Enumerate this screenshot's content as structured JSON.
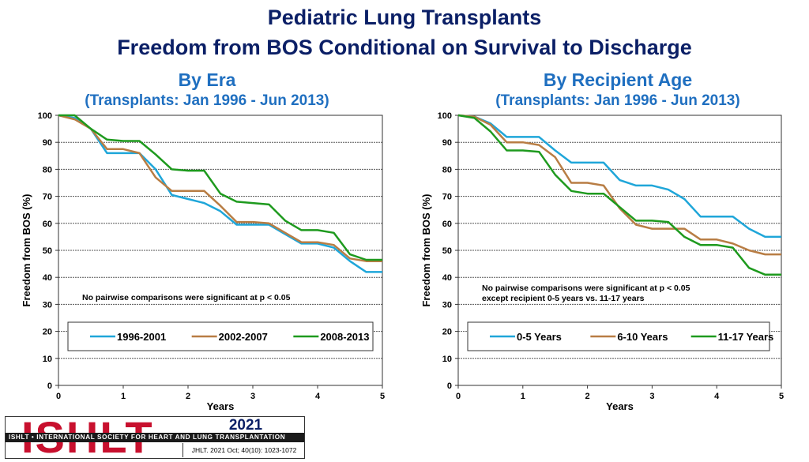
{
  "title_line1": "Pediatric Lung Transplants",
  "title_line2": "Freedom from BOS Conditional on Survival to Discharge",
  "logo": {
    "wordmark": "ISHLT",
    "band_text": "ISHLT • INTERNATIONAL SOCIETY FOR HEART AND LUNG TRANSPLANTATION",
    "year": "2021",
    "citation": "JHLT. 2021 Oct; 40(10): 1023-1072"
  },
  "chart_data": [
    {
      "type": "line",
      "title": "By Era",
      "subtitle": "(Transplants: Jan 1996 - Jun 2013)",
      "xlabel": "Years",
      "ylabel": "Freedom from BOS (%)",
      "xlim": [
        0,
        5
      ],
      "ylim": [
        0,
        100
      ],
      "xticks": [
        0,
        1,
        2,
        3,
        4,
        5
      ],
      "yticks": [
        0,
        10,
        20,
        30,
        40,
        50,
        60,
        70,
        80,
        90,
        100
      ],
      "annotation": [
        "No pairwise comparisons were significant at p < 0.05"
      ],
      "legend": "bottom",
      "series": [
        {
          "name": "1996-2001",
          "color": "#1fa6d9",
          "points": [
            [
              0,
              100
            ],
            [
              0.25,
              99
            ],
            [
              0.5,
              95
            ],
            [
              0.75,
              86
            ],
            [
              1,
              86
            ],
            [
              1.25,
              86
            ],
            [
              1.5,
              80
            ],
            [
              1.75,
              70.5
            ],
            [
              2,
              69
            ],
            [
              2.25,
              67.5
            ],
            [
              2.5,
              64.5
            ],
            [
              2.75,
              59.5
            ],
            [
              3,
              59.5
            ],
            [
              3.25,
              59.5
            ],
            [
              3.5,
              56
            ],
            [
              3.75,
              52.5
            ],
            [
              4,
              52.5
            ],
            [
              4.25,
              51
            ],
            [
              4.5,
              46
            ],
            [
              4.75,
              42
            ],
            [
              5,
              42
            ]
          ]
        },
        {
          "name": "2002-2007",
          "color": "#b87d44",
          "points": [
            [
              0,
              100
            ],
            [
              0.25,
              98.5
            ],
            [
              0.5,
              95
            ],
            [
              0.75,
              87.5
            ],
            [
              1,
              87.5
            ],
            [
              1.25,
              86
            ],
            [
              1.5,
              77
            ],
            [
              1.75,
              72
            ],
            [
              2,
              72
            ],
            [
              2.25,
              72
            ],
            [
              2.5,
              66.5
            ],
            [
              2.75,
              60.5
            ],
            [
              3,
              60.5
            ],
            [
              3.25,
              60
            ],
            [
              3.5,
              56.5
            ],
            [
              3.75,
              53
            ],
            [
              4,
              53
            ],
            [
              4.25,
              52
            ],
            [
              4.5,
              47
            ],
            [
              4.75,
              46
            ],
            [
              5,
              46
            ]
          ]
        },
        {
          "name": "2008-2013",
          "color": "#1e9a1e",
          "points": [
            [
              0,
              100
            ],
            [
              0.25,
              100
            ],
            [
              0.5,
              95
            ],
            [
              0.75,
              91
            ],
            [
              1,
              90.5
            ],
            [
              1.25,
              90.5
            ],
            [
              1.5,
              85.5
            ],
            [
              1.75,
              80
            ],
            [
              2,
              79.5
            ],
            [
              2.25,
              79.5
            ],
            [
              2.5,
              71
            ],
            [
              2.75,
              68
            ],
            [
              3,
              67.5
            ],
            [
              3.25,
              67
            ],
            [
              3.5,
              61
            ],
            [
              3.75,
              57.5
            ],
            [
              4,
              57.5
            ],
            [
              4.25,
              56.5
            ],
            [
              4.5,
              48.5
            ],
            [
              4.75,
              46.5
            ],
            [
              5,
              46.5
            ]
          ]
        }
      ]
    },
    {
      "type": "line",
      "title": "By Recipient Age",
      "subtitle": "(Transplants: Jan 1996 - Jun 2013)",
      "xlabel": "Years",
      "ylabel": "Freedom from BOS (%)",
      "xlim": [
        0,
        5
      ],
      "ylim": [
        0,
        100
      ],
      "xticks": [
        0,
        1,
        2,
        3,
        4,
        5
      ],
      "yticks": [
        0,
        10,
        20,
        30,
        40,
        50,
        60,
        70,
        80,
        90,
        100
      ],
      "annotation": [
        "No pairwise comparisons were significant at p < 0.05",
        "except recipient 0-5 years vs. 11-17 years"
      ],
      "legend": "bottom",
      "series": [
        {
          "name": "0-5 Years",
          "color": "#1fa6d9",
          "points": [
            [
              0,
              100
            ],
            [
              0.25,
              99.5
            ],
            [
              0.5,
              97
            ],
            [
              0.75,
              92
            ],
            [
              1,
              92
            ],
            [
              1.25,
              92
            ],
            [
              1.5,
              87
            ],
            [
              1.75,
              82.5
            ],
            [
              2,
              82.5
            ],
            [
              2.25,
              82.5
            ],
            [
              2.5,
              76
            ],
            [
              2.75,
              74
            ],
            [
              3,
              74
            ],
            [
              3.25,
              72.5
            ],
            [
              3.5,
              69
            ],
            [
              3.75,
              62.5
            ],
            [
              4,
              62.5
            ],
            [
              4.25,
              62.5
            ],
            [
              4.5,
              58
            ],
            [
              4.75,
              55
            ],
            [
              5,
              55
            ]
          ]
        },
        {
          "name": "6-10 Years",
          "color": "#b87d44",
          "points": [
            [
              0,
              100
            ],
            [
              0.25,
              99.5
            ],
            [
              0.5,
              96.5
            ],
            [
              0.75,
              90
            ],
            [
              1,
              90
            ],
            [
              1.25,
              89
            ],
            [
              1.5,
              84.5
            ],
            [
              1.75,
              75
            ],
            [
              2,
              75
            ],
            [
              2.25,
              74
            ],
            [
              2.5,
              65.5
            ],
            [
              2.75,
              59.5
            ],
            [
              3,
              58
            ],
            [
              3.25,
              58
            ],
            [
              3.5,
              58
            ],
            [
              3.75,
              54
            ],
            [
              4,
              54
            ],
            [
              4.25,
              52.5
            ],
            [
              4.5,
              50
            ],
            [
              4.75,
              48.5
            ],
            [
              5,
              48.5
            ]
          ]
        },
        {
          "name": "11-17 Years",
          "color": "#1e9a1e",
          "points": [
            [
              0,
              100
            ],
            [
              0.25,
              99
            ],
            [
              0.5,
              94
            ],
            [
              0.75,
              87
            ],
            [
              1,
              87
            ],
            [
              1.25,
              86.5
            ],
            [
              1.5,
              78
            ],
            [
              1.75,
              72
            ],
            [
              2,
              71
            ],
            [
              2.25,
              71
            ],
            [
              2.5,
              66
            ],
            [
              2.75,
              61
            ],
            [
              3,
              61
            ],
            [
              3.25,
              60.5
            ],
            [
              3.5,
              55
            ],
            [
              3.75,
              52
            ],
            [
              4,
              52
            ],
            [
              4.25,
              51
            ],
            [
              4.5,
              43.5
            ],
            [
              4.75,
              41
            ],
            [
              5,
              41
            ]
          ]
        }
      ]
    }
  ]
}
